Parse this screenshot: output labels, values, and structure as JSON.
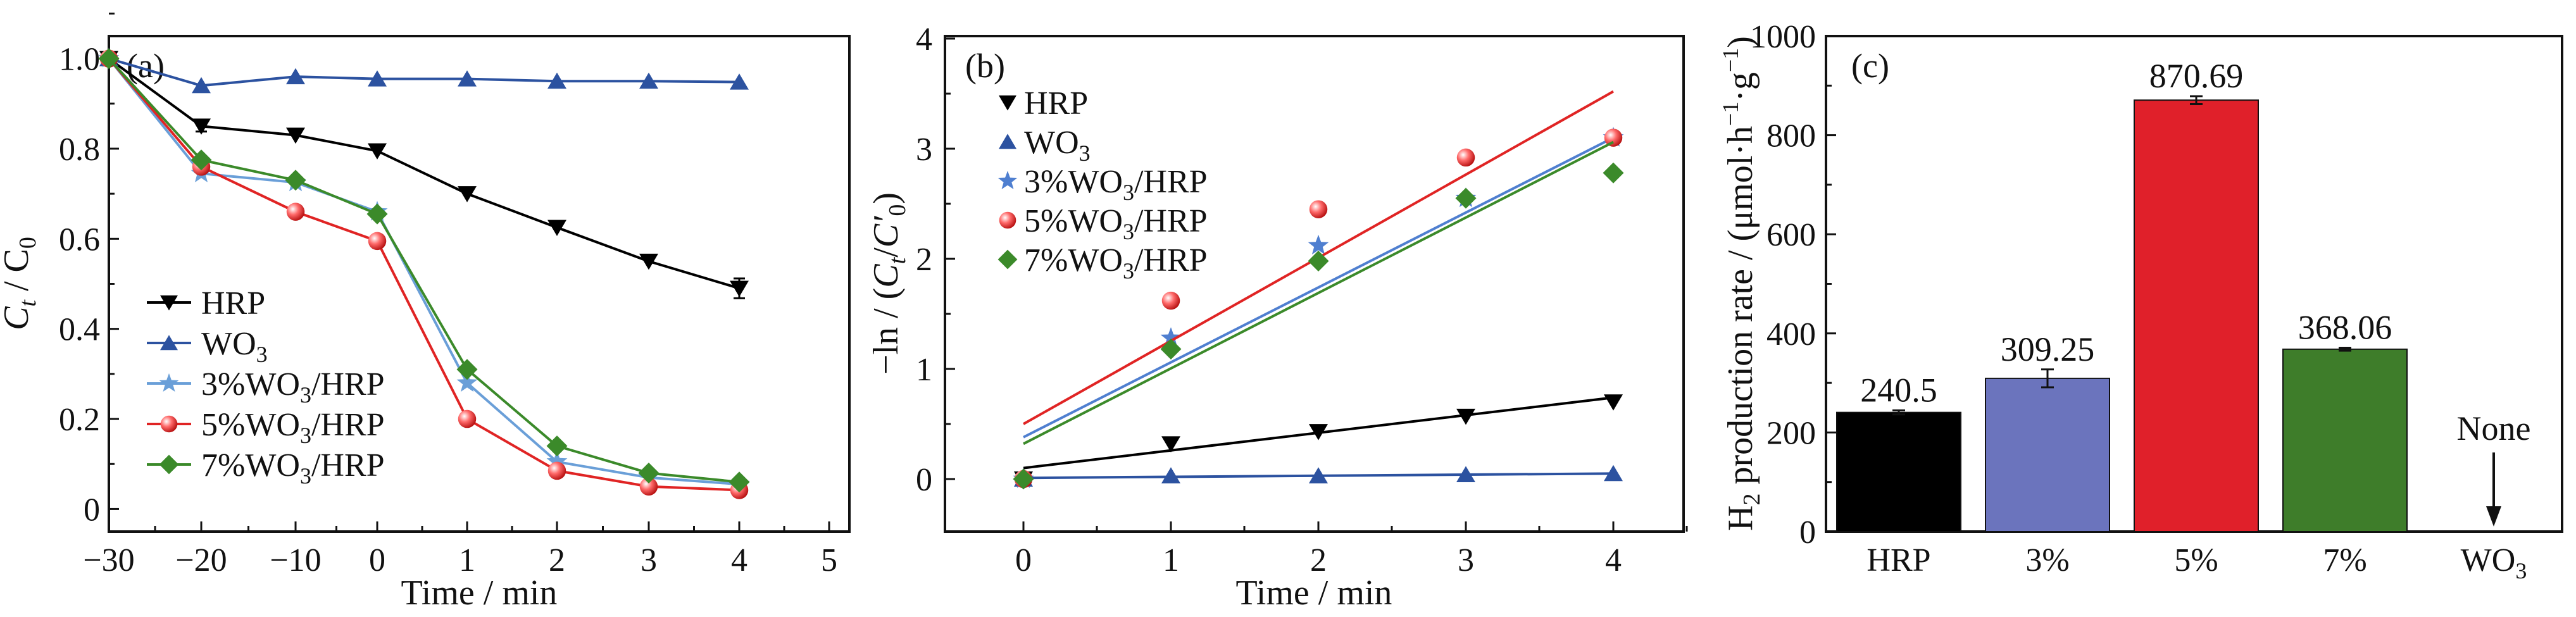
{
  "chart_data": [
    {
      "type": "line",
      "panel_label": "(a)",
      "xlabel": "Time / min",
      "ylabel": "Ct / C0",
      "ylabel_parts": {
        "main": "C",
        "sub1": "t",
        "mid": " / C",
        "sub2": "0"
      },
      "x_ticks": [
        -30,
        -20,
        -10,
        0,
        1,
        2,
        3,
        4,
        5
      ],
      "y_ticks": [
        "0",
        "0.2",
        "0.4",
        "0.6",
        "0.8",
        "1.0"
      ],
      "xlim": [
        -30,
        5
      ],
      "ylim": [
        -0.05,
        1.05
      ],
      "x_axis_note": "piecewise: -30..0 step 10, 0..5 step 1, evenly spaced ticks",
      "legend_position": "bottom-left",
      "series": [
        {
          "name": "HRP",
          "color": "#000000",
          "marker": "triangle-down",
          "x": [
            -30,
            -20,
            -10,
            0,
            1,
            2,
            3,
            4
          ],
          "y": [
            1.0,
            0.85,
            0.83,
            0.795,
            0.7,
            0.625,
            0.55,
            0.49
          ],
          "error": [
            0,
            0.012,
            0,
            0,
            0,
            0,
            0,
            0.022
          ]
        },
        {
          "name": "WO3",
          "color": "#2c52a0",
          "marker": "triangle-up",
          "x": [
            -30,
            -20,
            -10,
            0,
            1,
            2,
            3,
            4
          ],
          "y": [
            1.0,
            0.94,
            0.96,
            0.955,
            0.955,
            0.95,
            0.95,
            0.948
          ],
          "error": [
            0,
            0,
            0,
            0,
            0,
            0,
            0,
            0
          ]
        },
        {
          "name": "3%WO3/HRP",
          "color": "#6a9fd8",
          "marker": "star",
          "x": [
            -30,
            -20,
            -10,
            0,
            1,
            2,
            3,
            4
          ],
          "y": [
            1.0,
            0.745,
            0.725,
            0.66,
            0.28,
            0.105,
            0.07,
            0.055
          ],
          "error": [
            0,
            0,
            0,
            0,
            0,
            0,
            0,
            0
          ]
        },
        {
          "name": "5%WO3/HRP",
          "color": "#e02424",
          "marker": "circle",
          "x": [
            -30,
            -20,
            -10,
            0,
            1,
            2,
            3,
            4
          ],
          "y": [
            1.0,
            0.76,
            0.66,
            0.595,
            0.2,
            0.085,
            0.05,
            0.042
          ],
          "error": [
            0,
            0,
            0,
            0,
            0,
            0,
            0,
            0
          ]
        },
        {
          "name": "7%WO3/HRP",
          "color": "#3b8a2a",
          "marker": "diamond",
          "x": [
            -30,
            -20,
            -10,
            0,
            1,
            2,
            3,
            4
          ],
          "y": [
            1.0,
            0.775,
            0.73,
            0.655,
            0.31,
            0.14,
            0.08,
            0.06
          ],
          "error": [
            0,
            0,
            0,
            0,
            0,
            0,
            0,
            0
          ]
        }
      ]
    },
    {
      "type": "scatter",
      "panel_label": "(b)",
      "xlabel": "Time / min",
      "ylabel": "−ln / (Ct/C′0)",
      "ylabel_parts": {
        "pre": "−ln / (",
        "c1": "C",
        "s1": "t",
        "mid": "/",
        "c2": "C′",
        "s2": "0",
        "post": ")"
      },
      "x_ticks": [
        0,
        1,
        2,
        3,
        4
      ],
      "y_ticks": [
        0,
        1,
        2,
        3,
        4
      ],
      "xlim": [
        -0.5,
        4.5
      ],
      "ylim": [
        -0.5,
        4
      ],
      "legend_position": "top-left",
      "fit_lines": true,
      "series": [
        {
          "name": "HRP",
          "color": "#000000",
          "marker": "triangle-down",
          "x": [
            0,
            1,
            2,
            3,
            4
          ],
          "y": [
            0,
            0.32,
            0.43,
            0.57,
            0.7
          ],
          "fit": [
            0.1,
            0.74
          ]
        },
        {
          "name": "WO3",
          "color": "#2c52a0",
          "marker": "triangle-up",
          "x": [
            0,
            1,
            2,
            3,
            4
          ],
          "y": [
            0,
            0.03,
            0.03,
            0.04,
            0.05
          ],
          "fit": [
            0.01,
            0.05
          ]
        },
        {
          "name": "3%WO3/HRP",
          "color": "#4f7fd0",
          "marker": "star",
          "x": [
            0,
            1,
            2,
            3,
            4
          ],
          "y": [
            0,
            1.28,
            2.12,
            2.55,
            3.1
          ],
          "fit": [
            0.38,
            3.1
          ]
        },
        {
          "name": "5%WO3/HRP",
          "color": "#e02424",
          "marker": "circle",
          "x": [
            0,
            1,
            2,
            3,
            4
          ],
          "y": [
            0,
            1.62,
            2.45,
            2.92,
            3.1
          ],
          "fit": [
            0.5,
            3.52
          ]
        },
        {
          "name": "7%WO3/HRP",
          "color": "#3b8a2a",
          "marker": "diamond",
          "x": [
            0,
            1,
            2,
            3,
            4
          ],
          "y": [
            0,
            1.18,
            1.98,
            2.55,
            2.78
          ],
          "fit": [
            0.32,
            3.06
          ]
        }
      ]
    },
    {
      "type": "bar",
      "panel_label": "(c)",
      "ylabel": "H2 production rate / (μmol·h−1·g−1)",
      "ylabel_parts": {
        "h": "H",
        "h_sub": "2",
        "text": " production rate / (μmol·h",
        "e1": "−1",
        "mid": "·g",
        "e2": "−1",
        "post": ")"
      },
      "categories": [
        "HRP",
        "3%",
        "5%",
        "7%",
        "WO3"
      ],
      "values": [
        240.5,
        309.25,
        870.69,
        368.06,
        0
      ],
      "value_labels": [
        "240.5",
        "309.25",
        "870.69",
        "368.06",
        ""
      ],
      "errors": [
        4,
        18,
        8,
        3,
        0
      ],
      "colors": [
        "#000000",
        "#6b74bd",
        "#e0202a",
        "#3e7d2a",
        "#ffffff"
      ],
      "annotation": "None",
      "y_ticks": [
        0,
        200,
        400,
        600,
        800,
        1000
      ],
      "ylim": [
        0,
        1000
      ]
    }
  ]
}
